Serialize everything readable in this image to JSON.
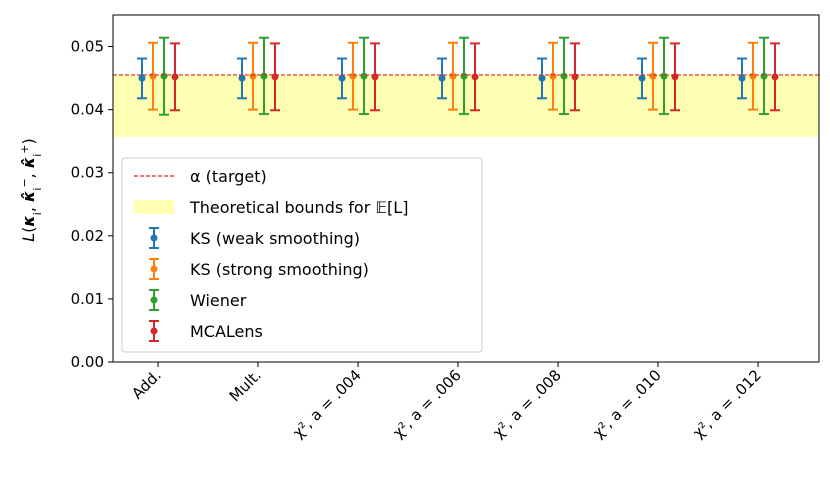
{
  "chart_data": {
    "type": "errorbar",
    "title": "",
    "xlabel": "",
    "ylabel": "L(κ_i, κ̂_i⁻, κ̂_i⁺)",
    "ylim": [
      0.0,
      0.055
    ],
    "yticks": [
      "0.00",
      "0.01",
      "0.02",
      "0.03",
      "0.04",
      "0.05"
    ],
    "categories": [
      "Add.",
      "Mult.",
      "χ², a = .004",
      "χ², a = .006",
      "χ², a = .008",
      "χ², a = .010",
      "χ², a = .012"
    ],
    "target_alpha": 0.0455,
    "theoretical_bounds": [
      0.0357,
      0.0455
    ],
    "series": [
      {
        "name": "KS (weak smoothing)",
        "color": "#1f77b4",
        "mean": [
          0.045,
          0.045,
          0.045,
          0.045,
          0.045,
          0.045,
          0.045
        ],
        "lower": [
          0.0418,
          0.0418,
          0.0418,
          0.0418,
          0.0418,
          0.0418,
          0.0418
        ],
        "upper": [
          0.0481,
          0.0481,
          0.0481,
          0.0481,
          0.0481,
          0.0481,
          0.0481
        ]
      },
      {
        "name": "KS (strong smoothing)",
        "color": "#ff7f0e",
        "mean": [
          0.0453,
          0.0453,
          0.0453,
          0.0453,
          0.0453,
          0.0453,
          0.0453
        ],
        "lower": [
          0.04,
          0.04,
          0.04,
          0.04,
          0.04,
          0.04,
          0.04
        ],
        "upper": [
          0.0506,
          0.0506,
          0.0506,
          0.0506,
          0.0506,
          0.0506,
          0.0506
        ]
      },
      {
        "name": "Wiener",
        "color": "#2ca02c",
        "mean": [
          0.0453,
          0.0453,
          0.0453,
          0.0453,
          0.0453,
          0.0453,
          0.0453
        ],
        "lower": [
          0.0392,
          0.0393,
          0.0393,
          0.0393,
          0.0393,
          0.0393,
          0.0393
        ],
        "upper": [
          0.0514,
          0.0514,
          0.0514,
          0.0514,
          0.0514,
          0.0514,
          0.0514
        ]
      },
      {
        "name": "MCALens",
        "color": "#d62728",
        "mean": [
          0.0452,
          0.0452,
          0.0452,
          0.0452,
          0.0452,
          0.0452,
          0.0452
        ],
        "lower": [
          0.0399,
          0.0399,
          0.0399,
          0.0399,
          0.0399,
          0.0399,
          0.0399
        ],
        "upper": [
          0.0505,
          0.0505,
          0.0505,
          0.0505,
          0.0505,
          0.0505,
          0.0505
        ]
      }
    ],
    "legend": {
      "placement": "lower-left",
      "items": [
        {
          "kind": "line",
          "label": "α (target)",
          "color": "#d62728"
        },
        {
          "kind": "patch",
          "label": "Theoretical bounds for 𝔼[L]",
          "color": "#ffffb3"
        },
        {
          "kind": "errorbar",
          "label": "KS (weak smoothing)",
          "color": "#1f77b4"
        },
        {
          "kind": "errorbar",
          "label": "KS (strong smoothing)",
          "color": "#ff7f0e"
        },
        {
          "kind": "errorbar",
          "label": "Wiener",
          "color": "#2ca02c"
        },
        {
          "kind": "errorbar",
          "label": "MCALens",
          "color": "#d62728"
        }
      ]
    }
  }
}
